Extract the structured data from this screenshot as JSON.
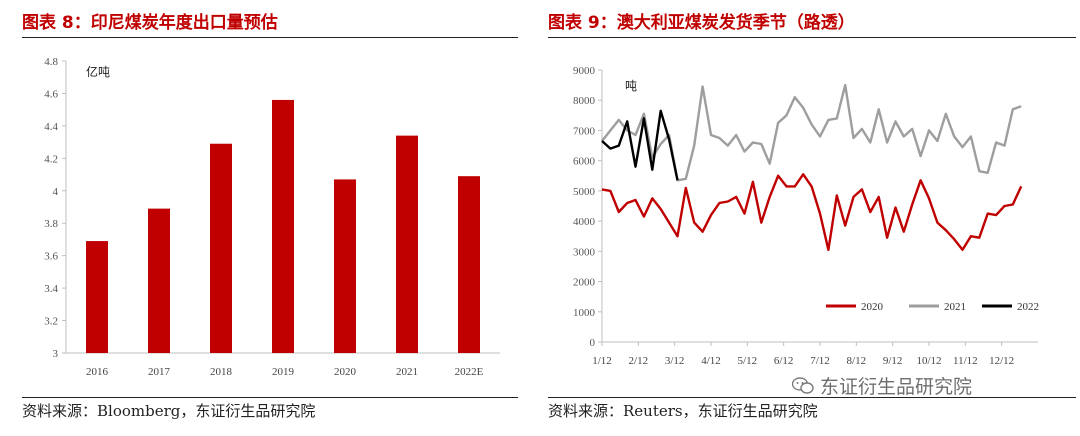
{
  "left": {
    "title": "图表 8：印尼煤炭年度出口量预估",
    "source": "资料来源：Bloomberg，东证衍生品研究院",
    "chart_data": {
      "type": "bar",
      "title": "",
      "unit_label": "亿吨",
      "categories": [
        "2016",
        "2017",
        "2018",
        "2019",
        "2020",
        "2021",
        "2022E"
      ],
      "values": [
        3.69,
        3.89,
        4.29,
        4.56,
        4.07,
        4.34,
        4.09
      ],
      "ylim": [
        3,
        4.8
      ],
      "yticks": [
        "3",
        "3.2",
        "3.4",
        "3.6",
        "3.8",
        "4",
        "4.2",
        "4.4",
        "4.6",
        "4.8"
      ],
      "color": "#c00000",
      "grid": false
    }
  },
  "right": {
    "title": "图表 9：澳大利亚煤炭发货季节（路透）",
    "source": "资料来源：Reuters，东证衍生品研究院",
    "chart_data": {
      "type": "line",
      "title": "",
      "unit_label": "吨",
      "ylim": [
        0,
        9000
      ],
      "yticks": [
        "0",
        "1000",
        "2000",
        "3000",
        "4000",
        "5000",
        "6000",
        "7000",
        "8000",
        "9000"
      ],
      "xticks": [
        "1/12",
        "2/12",
        "3/12",
        "4/12",
        "5/12",
        "6/12",
        "7/12",
        "8/12",
        "9/12",
        "10/12",
        "11/12",
        "12/12"
      ],
      "legend_position": "bottom-right",
      "series": [
        {
          "name": "2020",
          "color": "#c00000",
          "values": [
            5050,
            5000,
            4300,
            4600,
            4700,
            4150,
            4750,
            4400,
            3950,
            3500,
            5100,
            3950,
            3650,
            4200,
            4600,
            4650,
            4800,
            4250,
            5300,
            3950,
            4800,
            5500,
            5150,
            5150,
            5550,
            5150,
            4250,
            3050,
            4850,
            3850,
            4800,
            5050,
            4300,
            4800,
            3450,
            4450,
            3650,
            4550,
            5350,
            4750,
            3950,
            3700,
            3400,
            3050,
            3500,
            3450,
            4250,
            4200,
            4500,
            4550,
            5150
          ]
        },
        {
          "name": "2021",
          "color": "#9e9e9e",
          "values": [
            6650,
            7000,
            7350,
            7000,
            6850,
            7550,
            6100,
            6550,
            6850,
            5350,
            5400,
            6500,
            8450,
            6850,
            6750,
            6500,
            6850,
            6300,
            6600,
            6550,
            5900,
            7250,
            7500,
            8100,
            7750,
            7200,
            6800,
            7350,
            7400,
            8500,
            6750,
            7050,
            6600,
            7700,
            6600,
            7300,
            6800,
            7050,
            6150,
            7000,
            6650,
            7550,
            6800,
            6450,
            6800,
            5650,
            5600,
            6600,
            6500,
            7700,
            7800
          ]
        },
        {
          "name": "2022",
          "color": "#000000",
          "values": [
            6650,
            6400,
            6500,
            7300,
            5800,
            7400,
            5700,
            7650,
            6700,
            5350
          ]
        }
      ]
    }
  },
  "watermark": {
    "text": "东证衍生品研究院"
  }
}
